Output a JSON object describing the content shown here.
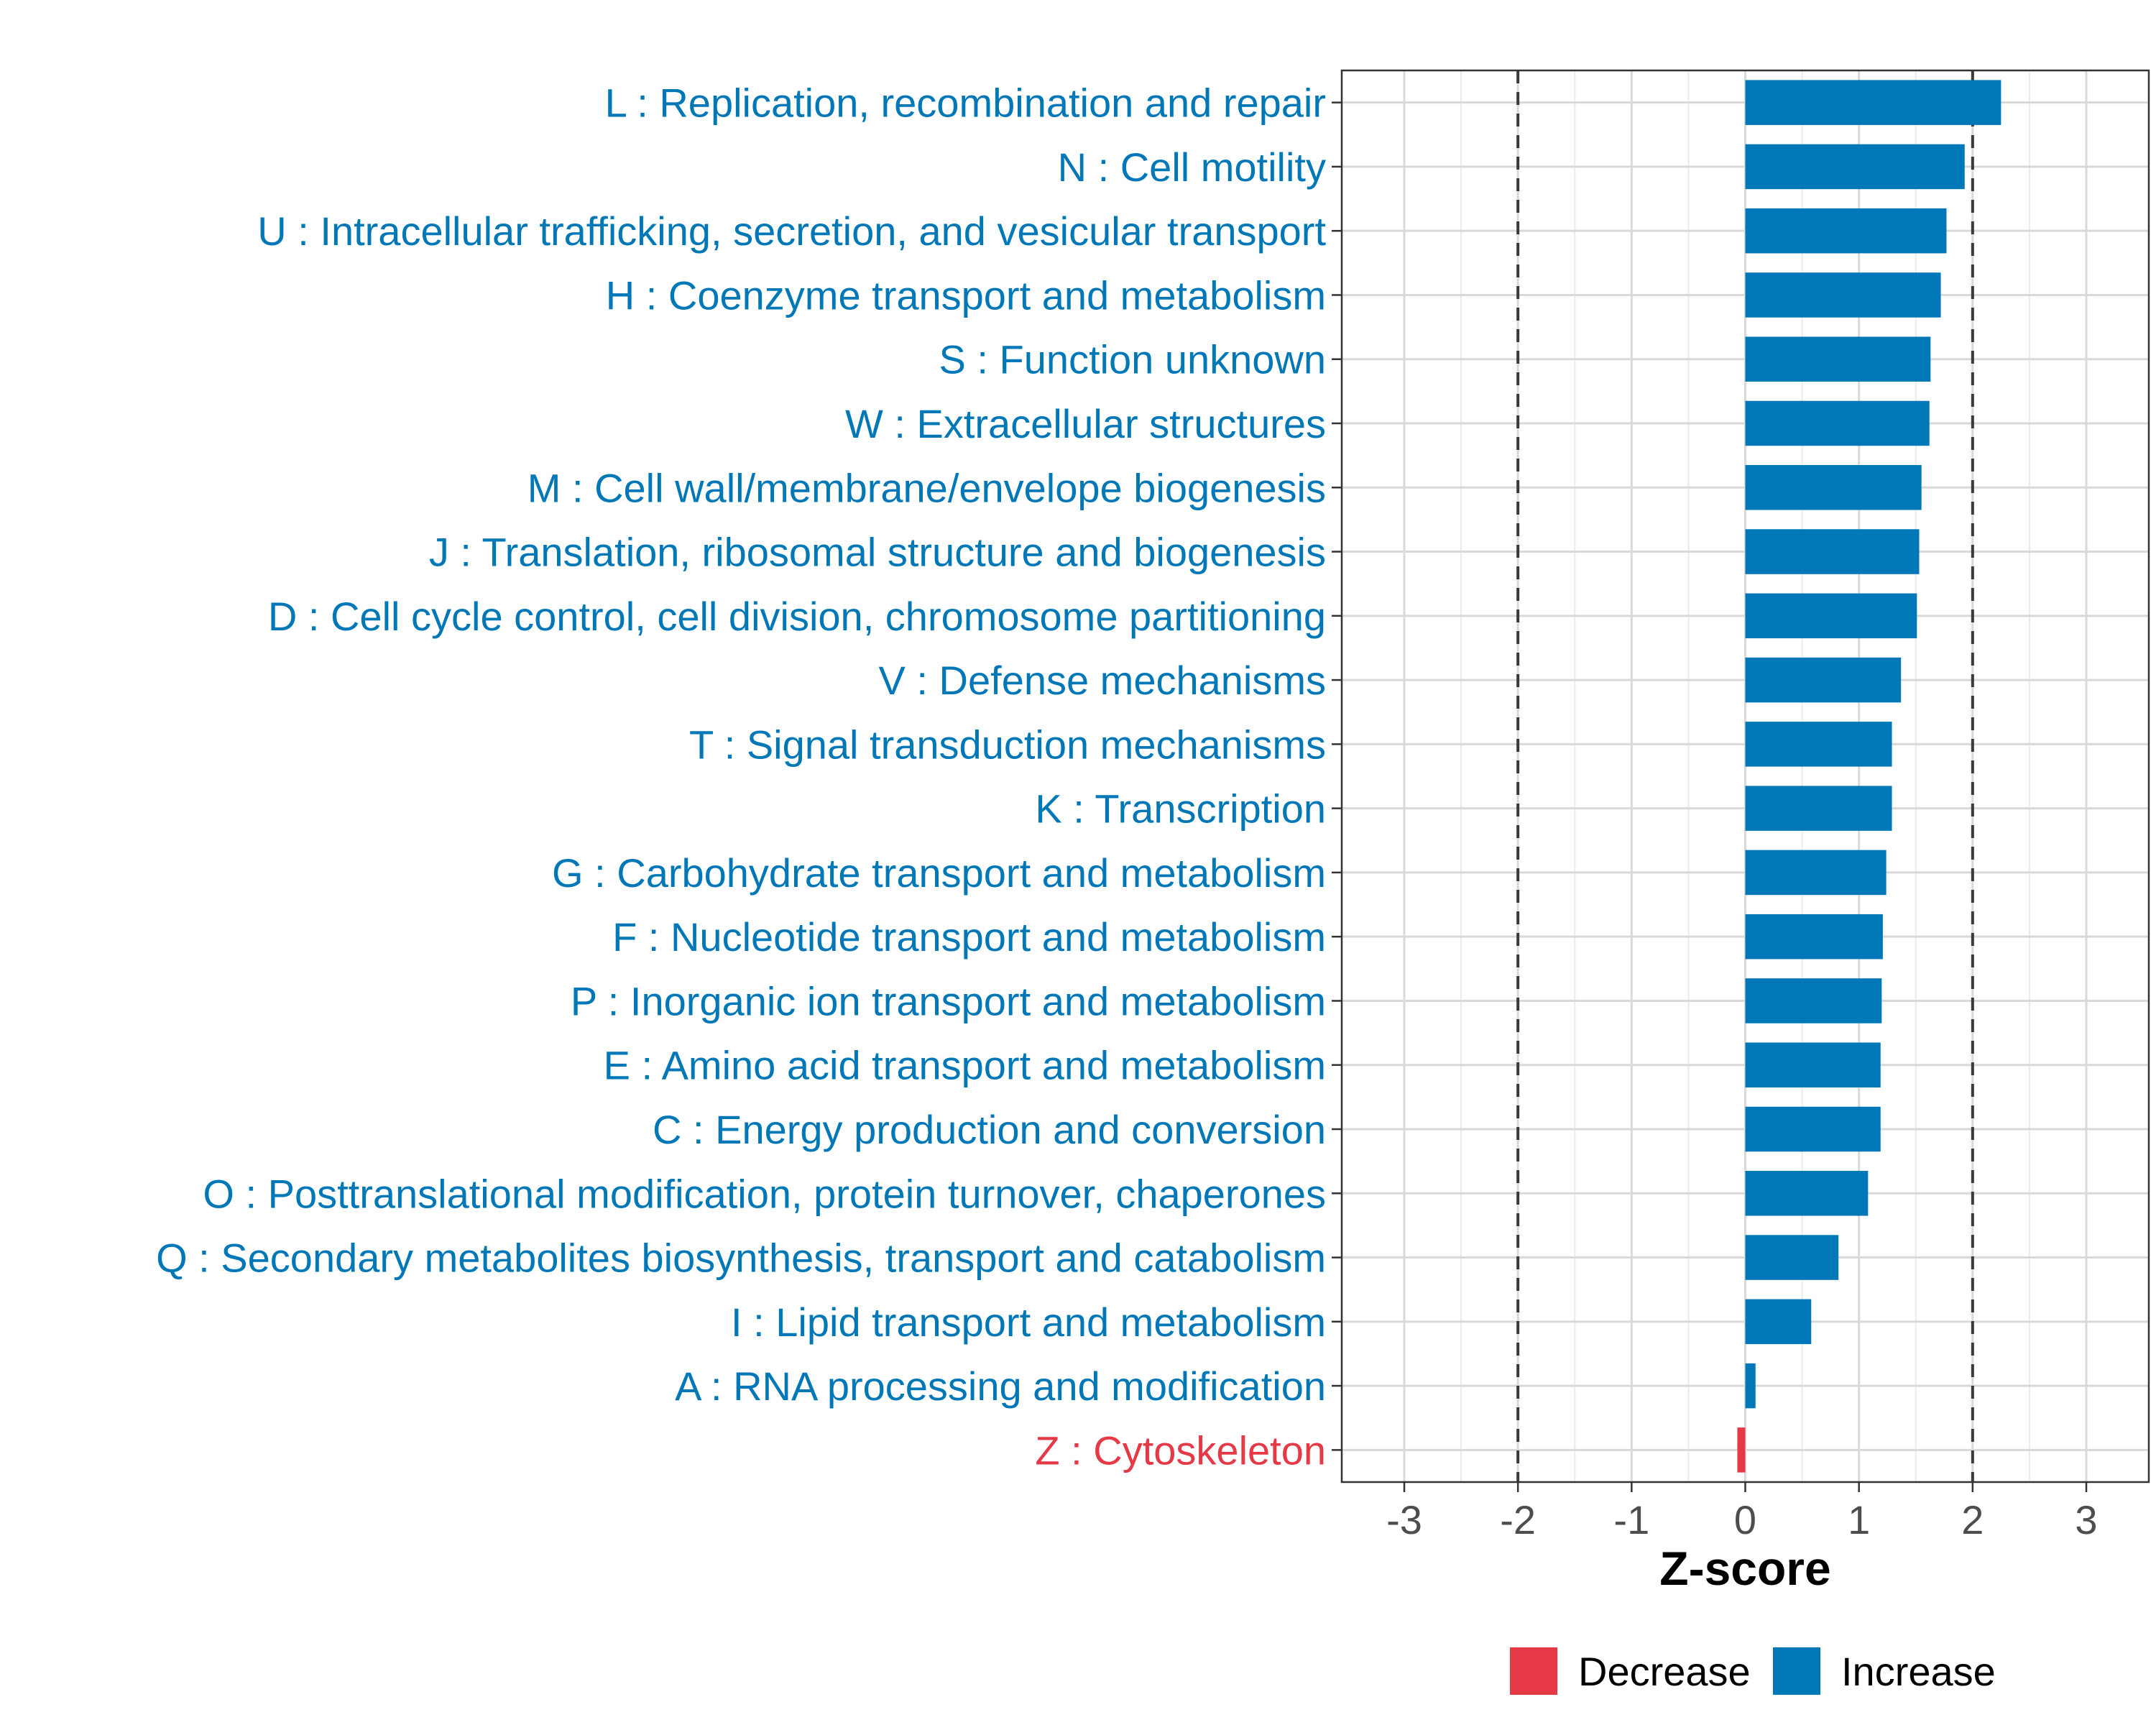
{
  "chart_data": {
    "type": "bar",
    "orientation": "horizontal",
    "title": "",
    "xlabel": "Z-score",
    "ylabel": "",
    "xlim": [
      -3.55,
      3.55
    ],
    "x_ticks": [
      -3,
      -2,
      -1,
      0,
      1,
      2,
      3
    ],
    "x_tick_labels": [
      "-3",
      "-2",
      "-1",
      "0",
      "1",
      "2",
      "3"
    ],
    "reference_lines": [
      -2,
      2
    ],
    "grid": true,
    "legend_position": "bottom",
    "colors": {
      "Decrease": "#e63946",
      "Increase": "#0077b6"
    },
    "legend": [
      {
        "label": "Decrease",
        "color": "#e63946"
      },
      {
        "label": "Increase",
        "color": "#0077b6"
      }
    ],
    "categories": [
      "L : Replication, recombination and repair",
      "N : Cell motility",
      "U : Intracellular trafficking, secretion, and vesicular transport",
      "H : Coenzyme transport and metabolism",
      "S : Function unknown",
      "W : Extracellular structures",
      "M : Cell wall/membrane/envelope biogenesis",
      "J : Translation, ribosomal structure and biogenesis",
      "D : Cell cycle control, cell division, chromosome partitioning",
      "V : Defense mechanisms",
      "T : Signal transduction mechanisms",
      "K : Transcription",
      "G : Carbohydrate transport and metabolism",
      "F : Nucleotide transport and metabolism",
      "P : Inorganic ion transport and metabolism",
      "E : Amino acid transport and metabolism",
      "C : Energy production and conversion",
      "O : Posttranslational modification, protein turnover, chaperones",
      "Q : Secondary metabolites biosynthesis, transport and catabolism",
      "I : Lipid transport and metabolism",
      "A : RNA processing and modification",
      "Z : Cytoskeleton"
    ],
    "values": [
      2.25,
      1.93,
      1.77,
      1.72,
      1.63,
      1.62,
      1.55,
      1.53,
      1.51,
      1.37,
      1.29,
      1.29,
      1.24,
      1.21,
      1.2,
      1.19,
      1.19,
      1.08,
      0.82,
      0.58,
      0.09,
      -0.07
    ],
    "direction": [
      "Increase",
      "Increase",
      "Increase",
      "Increase",
      "Increase",
      "Increase",
      "Increase",
      "Increase",
      "Increase",
      "Increase",
      "Increase",
      "Increase",
      "Increase",
      "Increase",
      "Increase",
      "Increase",
      "Increase",
      "Increase",
      "Increase",
      "Increase",
      "Increase",
      "Decrease"
    ]
  }
}
